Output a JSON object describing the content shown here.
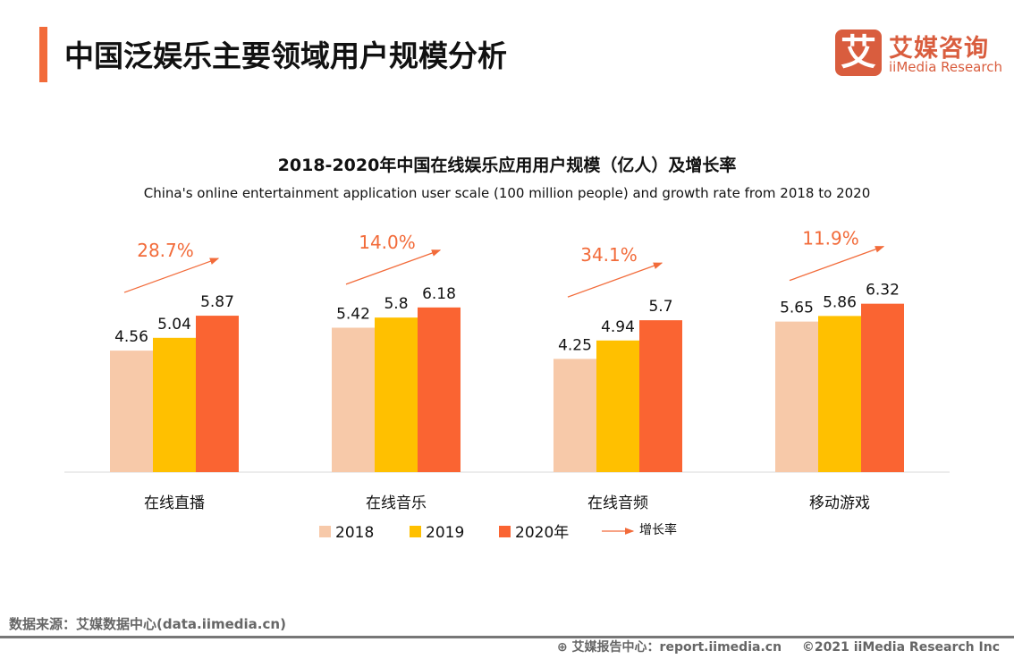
{
  "header": {
    "title": "中国泛娱乐主要领域用户规模分析",
    "logo_mark": "艾",
    "logo_cn": "艾媒咨询",
    "logo_en": "iiMedia Research"
  },
  "chart_data": {
    "type": "bar",
    "title": "2018-2020年中国在线娱乐应用用户规模（亿人）及增长率",
    "subtitle": "China's online entertainment application user scale (100 million people) and growth rate from 2018 to 2020",
    "categories": [
      "在线直播",
      "在线音乐",
      "在线音频",
      "移动游戏"
    ],
    "series": [
      {
        "name": "2018",
        "color": "#F7C9A9",
        "values": [
          4.56,
          5.42,
          4.25,
          5.65
        ]
      },
      {
        "name": "2019",
        "color": "#FFC000",
        "values": [
          5.04,
          5.8,
          4.94,
          5.86
        ]
      },
      {
        "name": "2020年",
        "color": "#FA6432",
        "values": [
          5.87,
          6.18,
          5.7,
          6.32
        ]
      }
    ],
    "growth": {
      "name": "增长率",
      "color": "#F26B3A",
      "values": [
        "28.7%",
        "14.0%",
        "34.1%",
        "11.9%"
      ]
    },
    "ylim": [
      0,
      7
    ],
    "legend_position": "bottom",
    "grid": false
  },
  "footer": {
    "source": "数据来源：艾媒数据中心(data.iimedia.cn)",
    "report": "艾媒报告中心：report.iimedia.cn",
    "copyright": "©2021  iiMedia Research  Inc"
  }
}
